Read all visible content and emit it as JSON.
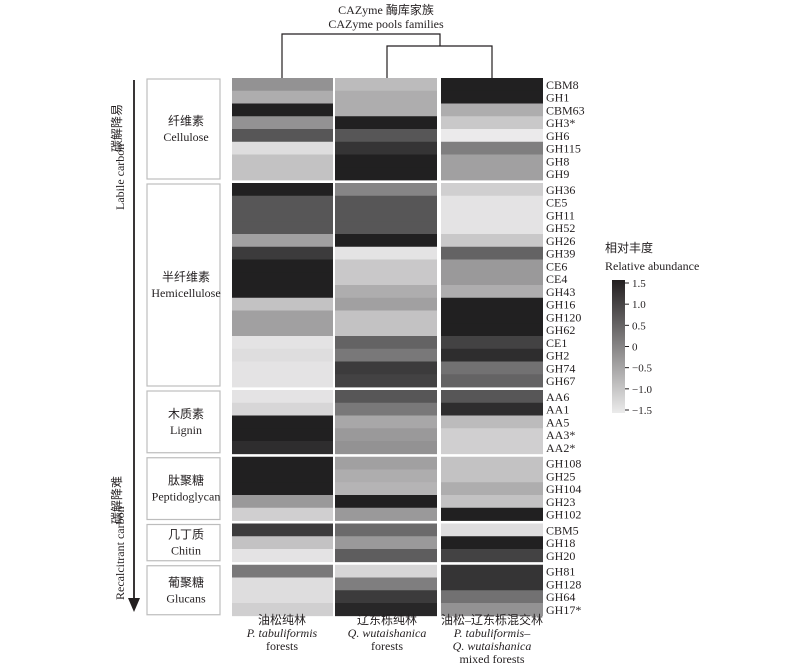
{
  "chart_data": {
    "type": "heatmap",
    "title_cn": "CAZyme 酶库家族",
    "title_en": "CAZyme pools families",
    "columns": [
      {
        "cn": "油松纯林",
        "latin": "P. tabuliformis",
        "en": "forests"
      },
      {
        "cn": "辽东栎纯林",
        "latin": "Q. wutaishanica",
        "en": "forests"
      },
      {
        "cn": "油松–辽东栎混交林",
        "latin": "P. tabuliformis–",
        "latin2": "Q. wutaishanica",
        "en": "mixed forests"
      }
    ],
    "dendrogram": "column 2 and column 3 cluster first, then join column 1",
    "groups": [
      {
        "cn": "纤维素",
        "en": "Cellulose",
        "rows": [
          {
            "family": "CBM8",
            "values": [
              -0.2,
              -0.8,
              1.5
            ]
          },
          {
            "family": "GH1",
            "values": [
              -0.6,
              -0.6,
              1.5
            ]
          },
          {
            "family": "CBM63",
            "values": [
              1.5,
              -0.6,
              -0.6
            ]
          },
          {
            "family": "GH3*",
            "values": [
              -0.2,
              1.5,
              -1.0
            ]
          },
          {
            "family": "GH6",
            "values": [
              0.7,
              0.7,
              -1.5
            ]
          },
          {
            "family": "GH115",
            "values": [
              -1.3,
              1.2,
              0.1
            ]
          },
          {
            "family": "GH8",
            "values": [
              -0.9,
              1.5,
              -0.4
            ]
          },
          {
            "family": "GH9",
            "values": [
              -0.9,
              1.5,
              -0.4
            ]
          }
        ]
      },
      {
        "cn": "半纤维素",
        "en": "Hemicellulose",
        "rows": [
          {
            "family": "GH36",
            "values": [
              1.5,
              0.0,
              -1.1
            ]
          },
          {
            "family": "CE5",
            "values": [
              0.7,
              0.7,
              -1.4
            ]
          },
          {
            "family": "GH11",
            "values": [
              0.7,
              0.7,
              -1.4
            ]
          },
          {
            "family": "GH52",
            "values": [
              0.7,
              0.7,
              -1.4
            ]
          },
          {
            "family": "GH26",
            "values": [
              -0.4,
              1.5,
              -1.0
            ]
          },
          {
            "family": "GH39",
            "values": [
              1.1,
              -1.4,
              0.5
            ]
          },
          {
            "family": "CE6",
            "values": [
              1.5,
              -1.0,
              -0.3
            ]
          },
          {
            "family": "CE4",
            "values": [
              1.5,
              -1.0,
              -0.3
            ]
          },
          {
            "family": "GH43",
            "values": [
              1.5,
              -0.6,
              -0.6
            ]
          },
          {
            "family": "GH16",
            "values": [
              -0.9,
              -0.4,
              1.5
            ]
          },
          {
            "family": "GH120",
            "values": [
              -0.4,
              -0.9,
              1.5
            ]
          },
          {
            "family": "GH62",
            "values": [
              -0.4,
              -0.9,
              1.5
            ]
          },
          {
            "family": "CE1",
            "values": [
              -1.4,
              0.5,
              1.0
            ]
          },
          {
            "family": "GH2",
            "values": [
              -1.3,
              0.2,
              1.3
            ]
          },
          {
            "family": "GH74",
            "values": [
              -1.4,
              1.1,
              0.3
            ]
          },
          {
            "family": "GH67",
            "values": [
              -1.4,
              1.0,
              0.5
            ]
          }
        ]
      },
      {
        "cn": "木质素",
        "en": "Lignin",
        "rows": [
          {
            "family": "AA6",
            "values": [
              -1.4,
              0.7,
              0.7
            ]
          },
          {
            "family": "AA1",
            "values": [
              -1.2,
              0.2,
              1.3
            ]
          },
          {
            "family": "AA5",
            "values": [
              1.5,
              -0.5,
              -0.8
            ]
          },
          {
            "family": "AA3*",
            "values": [
              1.5,
              -0.3,
              -1.1
            ]
          },
          {
            "family": "AA2*",
            "values": [
              1.3,
              -0.2,
              -1.1
            ]
          }
        ]
      },
      {
        "cn": "肽聚糖",
        "en": "Peptidoglycan",
        "rows": [
          {
            "family": "GH108",
            "values": [
              1.5,
              -0.4,
              -0.9
            ]
          },
          {
            "family": "GH25",
            "values": [
              1.5,
              -0.6,
              -0.9
            ]
          },
          {
            "family": "GH104",
            "values": [
              1.5,
              -0.7,
              -0.6
            ]
          },
          {
            "family": "GH23",
            "values": [
              -0.3,
              1.5,
              -0.9
            ]
          },
          {
            "family": "GH102",
            "values": [
              -1.1,
              -0.3,
              1.5
            ]
          }
        ]
      },
      {
        "cn": "几丁质",
        "en": "Chitin",
        "rows": [
          {
            "family": "CBM5",
            "values": [
              1.1,
              0.4,
              -1.3
            ]
          },
          {
            "family": "GH18",
            "values": [
              -0.9,
              -0.3,
              1.5
            ]
          },
          {
            "family": "GH20",
            "values": [
              -1.4,
              0.6,
              1.0
            ]
          }
        ]
      },
      {
        "cn": "葡聚糖",
        "en": "Glucans",
        "rows": [
          {
            "family": "GH81",
            "values": [
              0.2,
              -1.2,
              1.2
            ]
          },
          {
            "family": "GH128",
            "values": [
              -1.3,
              0.1,
              1.2
            ]
          },
          {
            "family": "GH64",
            "values": [
              -1.3,
              1.1,
              0.3
            ]
          },
          {
            "family": "GH17*",
            "values": [
              -1.1,
              1.4,
              -0.2
            ]
          }
        ]
      }
    ],
    "axis": {
      "top_cn": "碳解降易",
      "top_en": "Labile carbon",
      "bottom_cn": "碳解降难",
      "bottom_en": "Recalcitrant carbon"
    },
    "colorbar": {
      "title_cn": "相对丰度",
      "title_en": "Relative abundance",
      "range": [
        -1.5,
        1.5
      ],
      "ticks": [
        "1.5",
        "1.0",
        "0.5",
        "0",
        "−0.5",
        "−1.0",
        "−1.5"
      ],
      "tick_values": [
        1.5,
        1.0,
        0.5,
        0,
        -0.5,
        -1.0,
        -1.5
      ],
      "low_color": "#ebebeb",
      "high_color": "#231f20"
    }
  }
}
